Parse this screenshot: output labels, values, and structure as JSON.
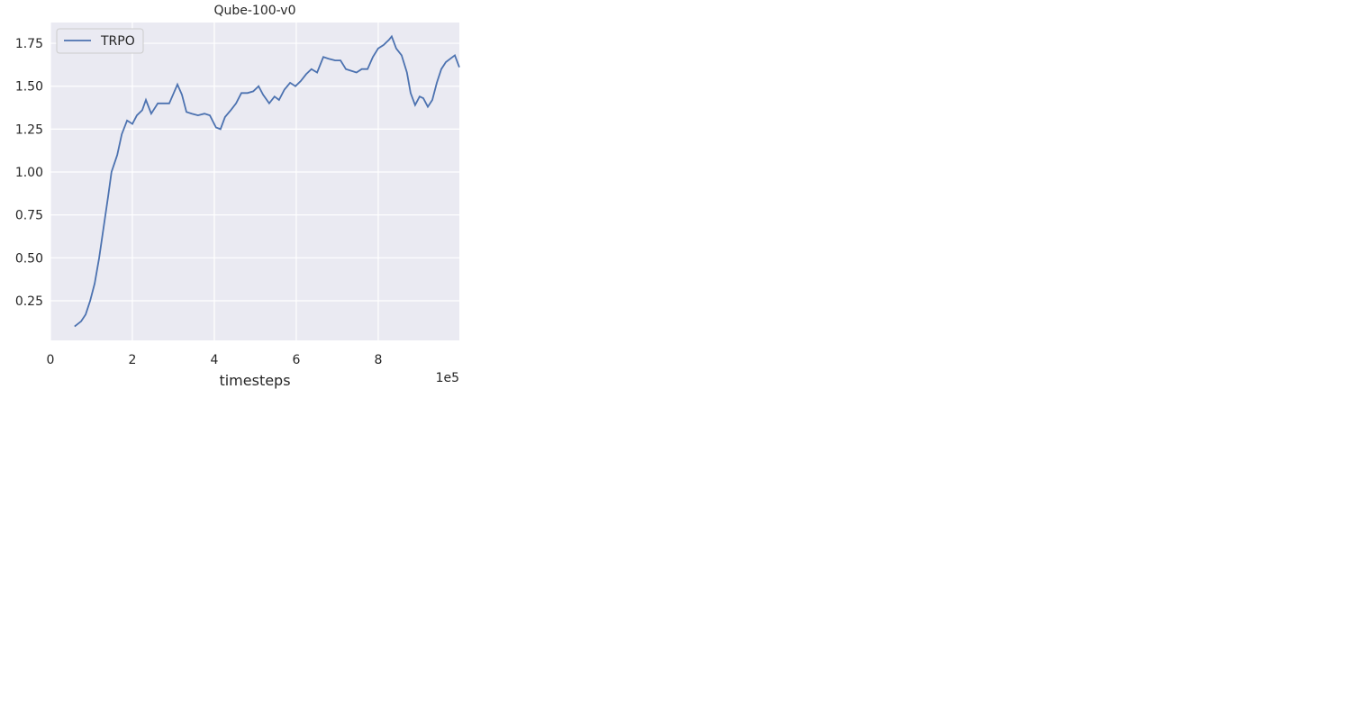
{
  "chart_data": {
    "type": "line",
    "title": "Qube-100-v0",
    "x_label": "timesteps",
    "x_offset_label": "1e5",
    "x": [
      0.59,
      0.75,
      0.86,
      0.97,
      1.08,
      1.19,
      1.3,
      1.41,
      1.49,
      1.63,
      1.74,
      1.87,
      2.0,
      2.11,
      2.24,
      2.33,
      2.46,
      2.62,
      2.77,
      2.9,
      3.01,
      3.1,
      3.21,
      3.32,
      3.45,
      3.6,
      3.76,
      3.89,
      4.04,
      4.15,
      4.26,
      4.4,
      4.53,
      4.66,
      4.81,
      4.95,
      5.08,
      5.19,
      5.34,
      5.47,
      5.58,
      5.71,
      5.85,
      5.98,
      6.11,
      6.24,
      6.37,
      6.51,
      6.66,
      6.79,
      6.95,
      7.08,
      7.21,
      7.34,
      7.47,
      7.6,
      7.74,
      7.87,
      8.0,
      8.13,
      8.26,
      8.33,
      8.44,
      8.57,
      8.7,
      8.79,
      8.9,
      9.01,
      9.1,
      9.21,
      9.32,
      9.43,
      9.54,
      9.65,
      9.76,
      9.87,
      9.98
    ],
    "series": [
      {
        "name": "TRPO",
        "color": "#4c72b0",
        "values": [
          0.1,
          0.13,
          0.17,
          0.25,
          0.35,
          0.5,
          0.68,
          0.86,
          1.0,
          1.1,
          1.22,
          1.3,
          1.28,
          1.33,
          1.36,
          1.42,
          1.34,
          1.4,
          1.4,
          1.4,
          1.46,
          1.51,
          1.45,
          1.35,
          1.34,
          1.33,
          1.34,
          1.33,
          1.26,
          1.25,
          1.32,
          1.36,
          1.4,
          1.46,
          1.46,
          1.47,
          1.5,
          1.45,
          1.4,
          1.44,
          1.42,
          1.48,
          1.52,
          1.5,
          1.53,
          1.57,
          1.6,
          1.58,
          1.67,
          1.66,
          1.65,
          1.65,
          1.6,
          1.59,
          1.58,
          1.6,
          1.6,
          1.67,
          1.72,
          1.74,
          1.77,
          1.79,
          1.72,
          1.68,
          1.58,
          1.46,
          1.39,
          1.44,
          1.43,
          1.38,
          1.42,
          1.52,
          1.6,
          1.64,
          1.66,
          1.68,
          1.61
        ]
      }
    ],
    "xlim": [
      0,
      9.98
    ],
    "ylim": [
      0.019,
      1.871
    ],
    "xticks": [
      0,
      2,
      4,
      6,
      8
    ],
    "yticks": [
      {
        "value": 0.25,
        "label": "0.25"
      },
      {
        "value": 0.5,
        "label": "0.50"
      },
      {
        "value": 0.75,
        "label": "0.75"
      },
      {
        "value": 1.0,
        "label": "1.00"
      },
      {
        "value": 1.25,
        "label": "1.25"
      },
      {
        "value": 1.5,
        "label": "1.50"
      },
      {
        "value": 1.75,
        "label": "1.75"
      }
    ],
    "grid": true,
    "legend": "upper-left"
  }
}
